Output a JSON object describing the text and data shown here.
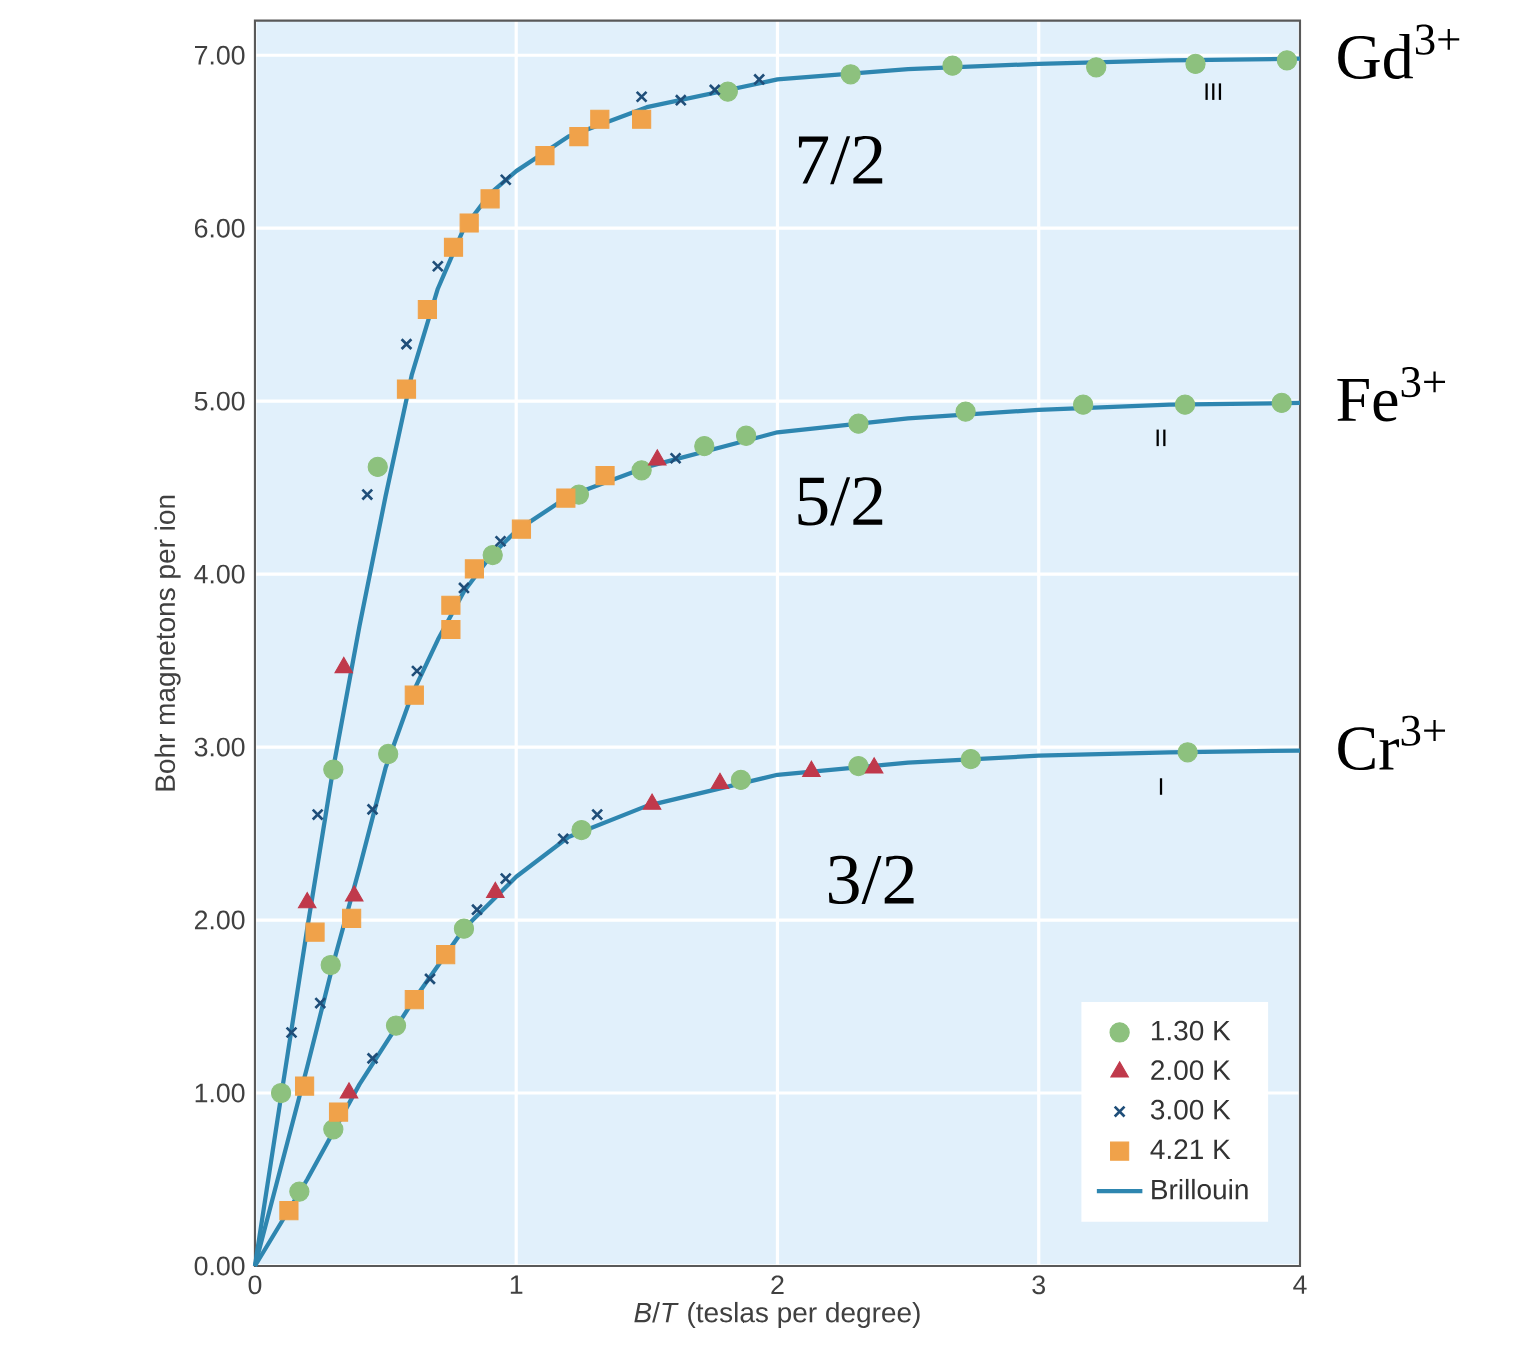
{
  "chart_data": {
    "type": "scatter",
    "xlabel": "*B*/*T* (teslas per degree)",
    "ylabel": "Bohr magnetons per ion",
    "xlim": [
      0,
      4
    ],
    "ylim": [
      0,
      7.2
    ],
    "xticks": [
      0,
      1,
      2,
      3,
      4
    ],
    "yticks": [
      {
        "value": 0,
        "label": "0.00"
      },
      {
        "value": 1,
        "label": "1.00"
      },
      {
        "value": 2,
        "label": "2.00"
      },
      {
        "value": 3,
        "label": "3.00"
      },
      {
        "value": 4,
        "label": "4.00"
      },
      {
        "value": 5,
        "label": "5.00"
      },
      {
        "value": 6,
        "label": "6.00"
      },
      {
        "value": 7,
        "label": "7.00"
      }
    ],
    "grid": true,
    "legend": "bottom right",
    "series": [
      {
        "name": "1.30 K",
        "marker": "circle",
        "color": "#8dc17e",
        "x": [
          0.1,
          0.3,
          0.47,
          1.81,
          2.28,
          2.67,
          3.22,
          3.6,
          3.95,
          0.29,
          0.51,
          0.91,
          1.24,
          1.48,
          1.72,
          1.88,
          2.31,
          2.72,
          3.17,
          3.56,
          3.93,
          0.17,
          0.3,
          0.54,
          0.8,
          1.25,
          1.86,
          2.31,
          2.74,
          3.57
        ],
        "values": [
          1.0,
          2.87,
          4.62,
          6.79,
          6.89,
          6.94,
          6.93,
          6.95,
          6.97,
          1.74,
          2.96,
          4.11,
          4.46,
          4.6,
          4.74,
          4.8,
          4.87,
          4.94,
          4.98,
          4.98,
          4.99,
          0.43,
          0.79,
          1.39,
          1.95,
          2.52,
          2.81,
          2.89,
          2.93,
          2.97
        ]
      },
      {
        "name": "2.00 K",
        "marker": "triangle",
        "color": "#c0394b",
        "x": [
          0.2,
          0.34,
          0.38,
          1.54,
          0.36,
          0.92,
          1.52,
          1.78,
          2.13,
          2.37
        ],
        "values": [
          2.1,
          3.46,
          2.14,
          4.66,
          1.0,
          2.16,
          2.67,
          2.79,
          2.86,
          2.88
        ]
      },
      {
        "name": "3.00 K",
        "marker": "cross",
        "color": "#1f4e79",
        "x": [
          0.14,
          0.24,
          0.43,
          0.58,
          0.7,
          0.96,
          1.48,
          1.63,
          1.76,
          1.93,
          0.25,
          0.45,
          0.62,
          0.8,
          0.94,
          1.61,
          0.45,
          0.67,
          0.85,
          0.96,
          1.18,
          1.31
        ],
        "values": [
          1.35,
          2.61,
          4.46,
          5.33,
          5.78,
          6.28,
          6.76,
          6.74,
          6.8,
          6.86,
          1.52,
          2.64,
          3.44,
          3.92,
          4.19,
          4.67,
          1.2,
          1.66,
          2.06,
          2.24,
          2.47,
          2.61
        ]
      },
      {
        "name": "4.21 K",
        "marker": "square",
        "color": "#f0a24a",
        "x": [
          0.23,
          0.58,
          0.66,
          0.76,
          0.82,
          0.9,
          1.11,
          1.24,
          1.32,
          1.48,
          0.19,
          0.37,
          0.61,
          0.75,
          0.75,
          0.84,
          1.02,
          1.19,
          1.34,
          0.13,
          0.32,
          0.61,
          0.73
        ],
        "values": [
          1.93,
          5.07,
          5.53,
          5.89,
          6.03,
          6.17,
          6.42,
          6.53,
          6.63,
          6.63,
          1.04,
          2.01,
          3.3,
          3.68,
          3.82,
          4.03,
          4.26,
          4.44,
          4.57,
          0.32,
          0.89,
          1.54,
          1.8
        ]
      },
      {
        "name": "Brillouin",
        "type": "line",
        "marker": "none",
        "color": "#2e86b0",
        "x": [
          0,
          0.1,
          0.2,
          0.3,
          0.4,
          0.5,
          0.6,
          0.7,
          0.8,
          0.9,
          1.0,
          1.2,
          1.5,
          2.0,
          2.5,
          3.0,
          3.5,
          4.0
        ],
        "values": [
          0,
          0.98,
          1.95,
          2.88,
          3.7,
          4.45,
          5.15,
          5.65,
          6.0,
          6.2,
          6.33,
          6.53,
          6.7,
          6.86,
          6.92,
          6.95,
          6.97,
          6.98
        ]
      },
      {
        "type": "line",
        "marker": "none",
        "color": "#2e86b0",
        "x": [
          0,
          0.2,
          0.3,
          0.4,
          0.5,
          0.6,
          0.7,
          0.8,
          0.9,
          1.0,
          1.2,
          1.5,
          2.0,
          2.5,
          3.0,
          3.5,
          4.0
        ],
        "values": [
          0,
          1.15,
          1.75,
          2.3,
          2.88,
          3.3,
          3.62,
          3.9,
          4.1,
          4.25,
          4.45,
          4.62,
          4.82,
          4.9,
          4.95,
          4.98,
          4.99
        ]
      },
      {
        "type": "line",
        "marker": "none",
        "color": "#2e86b0",
        "x": [
          0,
          0.2,
          0.4,
          0.6,
          0.8,
          1.0,
          1.2,
          1.5,
          2.0,
          2.5,
          3.0,
          3.5,
          4.0
        ],
        "values": [
          0,
          0.5,
          1.05,
          1.52,
          1.95,
          2.25,
          2.48,
          2.66,
          2.84,
          2.91,
          2.95,
          2.97,
          2.98
        ]
      }
    ],
    "annotations": [
      "7/2",
      "5/2",
      "3/2",
      "III",
      "II",
      "I",
      "Gd$^{3+}$",
      "Fe$^{3+}$",
      "Cr$^{3+}$"
    ]
  }
}
